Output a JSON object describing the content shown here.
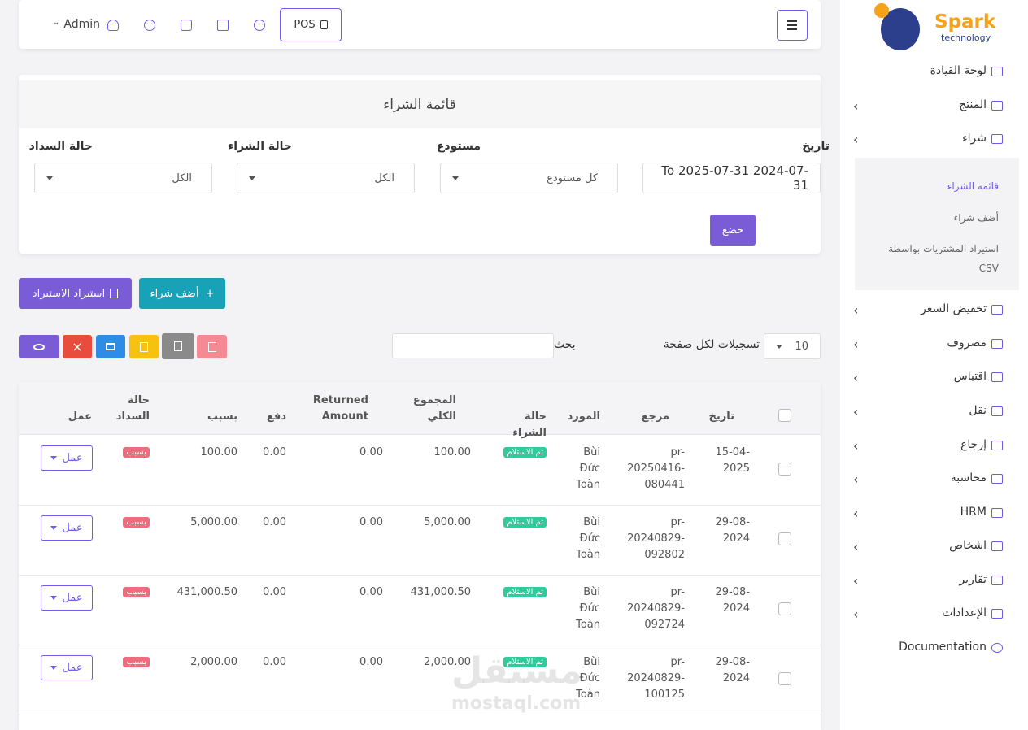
{
  "header": {
    "user": "Admin",
    "pos": "POS"
  },
  "logo": {
    "name": "Spark",
    "sub": "technology"
  },
  "sidebar": {
    "items": [
      "لوحة القيادة",
      "المنتج",
      "شراء",
      "تخفيض السعر",
      "مصروف",
      "اقتباس",
      "نقل",
      "إرجاع",
      "محاسبة",
      "HRM",
      "اشخاص",
      "تقارير",
      "الإعدادات",
      "Documentation"
    ],
    "submenu": [
      "قائمة الشراء",
      "أضف شراء",
      "استيراد المشتريات بواسطة CSV"
    ]
  },
  "panel": {
    "title": "قائمة الشراء",
    "filters": [
      {
        "label": "تاريخ",
        "value": "To 2025-07-31 2024-07-31"
      },
      {
        "label": "مستودع",
        "value": "كل مستودع"
      },
      {
        "label": "حالة الشراء",
        "value": "الكل"
      },
      {
        "label": "حالة السداد",
        "value": "الكل"
      }
    ],
    "submit": "خضع"
  },
  "actions": {
    "add": "أضف شراء",
    "import": "استيراد الاستيراد"
  },
  "table_controls": {
    "per_page_value": "10",
    "per_page_label": "تسجيلات لكل صفحة",
    "search": "بحث"
  },
  "table": {
    "headers": [
      "تاريخ",
      "مرجع",
      "المورد",
      "حالة الشراء",
      "المجموع الكلي",
      "Returned Amount",
      "دفع",
      "بسبب",
      "حالة السداد",
      "عمل"
    ],
    "rows": [
      [
        "15-04-2025",
        "pr-20250416-080441",
        "Bùi Đức Toàn",
        "تم الاستلام",
        "100.00",
        "0.00",
        "0.00",
        "100.00",
        "بسبب",
        "عمل"
      ],
      [
        "29-08-2024",
        "pr-20240829-092802",
        "Bùi Đức Toàn",
        "تم الاستلام",
        "5,000.00",
        "0.00",
        "0.00",
        "5,000.00",
        "بسبب",
        "عمل"
      ],
      [
        "29-08-2024",
        "pr-20240829-092724",
        "Bùi Đức Toàn",
        "تم الاستلام",
        "431,000.50",
        "0.00",
        "0.00",
        "431,000.50",
        "بسبب",
        "عمل"
      ],
      [
        "29-08-2024",
        "pr-20240829-100125",
        "Bùi Đức Toàn",
        "تم الاستلام",
        "2,000.00",
        "0.00",
        "0.00",
        "2,000.00",
        "بسبب",
        "عمل"
      ]
    ]
  },
  "watermark": {
    "text": "مستقل",
    "sub": "mostaql.com"
  }
}
